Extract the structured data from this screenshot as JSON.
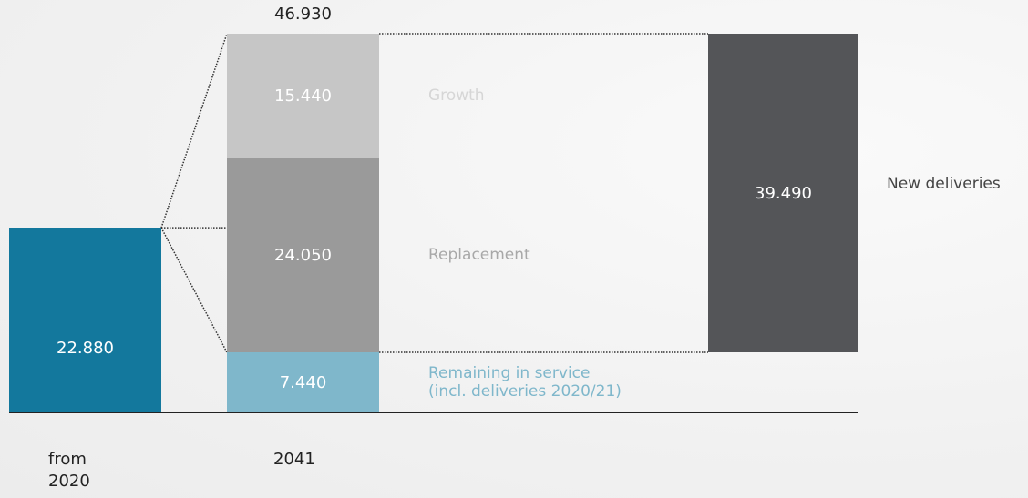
{
  "chart_data": {
    "type": "waterfall",
    "start": {
      "category": "from 2020",
      "value": 22880,
      "value_label": "22.880",
      "color": "#13789d"
    },
    "end": {
      "category": "2041",
      "total": 46930,
      "total_label": "46.930",
      "segments": [
        {
          "name": "Remaining in service\n(incl. deliveries 2020/21)",
          "value": 7440,
          "value_label": "7.440",
          "color": "#7fb7cb",
          "label_color": "#7fb7cb"
        },
        {
          "name": "Replacement",
          "value": 24050,
          "value_label": "24.050",
          "color": "#9a9a9a",
          "label_color": "#a8a8a8"
        },
        {
          "name": "Growth",
          "value": 15440,
          "value_label": "15.440",
          "color": "#c6c6c6",
          "label_color": "#d6d6d6"
        }
      ]
    },
    "new_deliveries": {
      "name": "New deliveries",
      "value": 39490,
      "value_label": "39.490",
      "color": "#545558"
    }
  }
}
